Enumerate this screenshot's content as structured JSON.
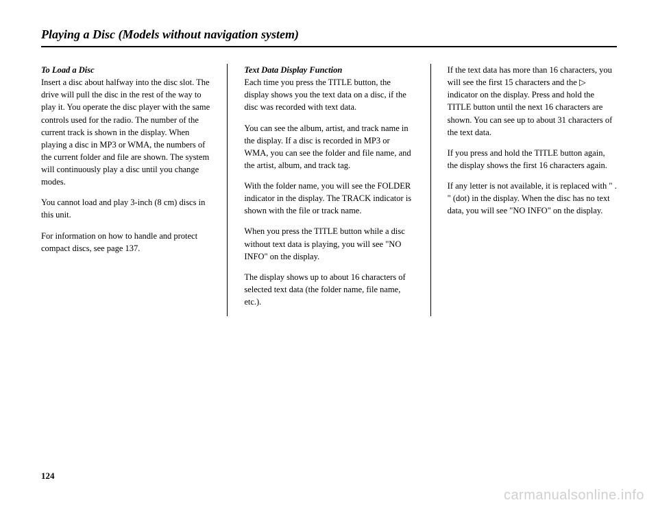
{
  "title": "Playing a Disc (Models without navigation system)",
  "col1": {
    "subhead": "To Load a Disc",
    "p1": "Insert a disc about halfway into the disc slot. The drive will pull the disc in the rest of the way to play it. You operate the disc player with the same controls used for the radio. The number of the current track is shown in the display. When playing a disc in MP3 or WMA, the numbers of the current folder and file are shown. The system will continuously play a disc until you change modes.",
    "p2": "You cannot load and play 3-inch (8 cm) discs in this unit.",
    "p3": "For information on how to handle and protect compact discs, see page 137."
  },
  "col2": {
    "subhead": "Text Data Display Function",
    "p1": "Each time you press the TITLE button, the display shows you the text data on a disc, if the disc was recorded with text data.",
    "p2": "You can see the album, artist, and track name in the display. If a disc is recorded in MP3 or WMA, you can see the folder and file name, and the artist, album, and track tag.",
    "p3": "With the folder name, you will see the FOLDER indicator in the display. The TRACK indicator is shown with the file or track name.",
    "p4": "When you press the TITLE button while a disc without text data is playing, you will see \"NO INFO\" on the display.",
    "p5": "The display shows up to about 16 characters of selected text data (the folder name, file name, etc.)."
  },
  "col3": {
    "p1a": "If the text data has more than 16 characters, you will see the first 15 characters and the ",
    "p1b": " indicator on the display. Press and hold the TITLE button until the next 16 characters are shown. You can see up to about 31 characters of the text data.",
    "p2": "If you press and hold the TITLE button again, the display shows the first 16 characters again.",
    "p3": "If any letter is not available, it is replaced with \" . \" (dot) in the display. When the disc has no text data, you will see \"NO INFO\" on the display."
  },
  "pagenum": "124",
  "watermark": "carmanualsonline.info"
}
